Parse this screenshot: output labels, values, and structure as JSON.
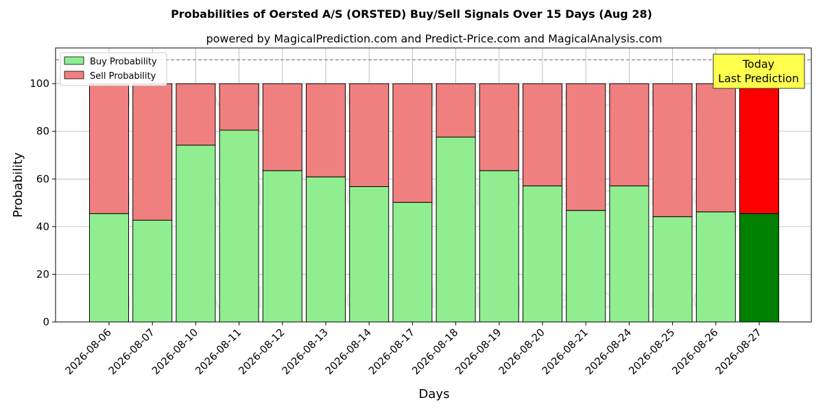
{
  "chart_data": {
    "type": "bar",
    "stacked": true,
    "title": "Probabilities of Oersted A/S (ORSTED) Buy/Sell Signals Over 15 Days (Aug 28)",
    "subtitle": "powered by MagicalPrediction.com and Predict-Price.com and MagicalAnalysis.com",
    "xlabel": "Days",
    "ylabel": "Probability",
    "ylim": [
      0,
      115
    ],
    "yticks": [
      0,
      20,
      40,
      60,
      80,
      100
    ],
    "grid": true,
    "reference_line": 110,
    "legend_position": "top-left",
    "categories": [
      "2026-08-06",
      "2026-08-07",
      "2026-08-10",
      "2026-08-11",
      "2026-08-12",
      "2026-08-13",
      "2026-08-14",
      "2026-08-17",
      "2026-08-18",
      "2026-08-19",
      "2026-08-20",
      "2026-08-21",
      "2026-08-24",
      "2026-08-25",
      "2026-08-26",
      "2026-08-27"
    ],
    "series": [
      {
        "name": "Buy Probability",
        "values": [
          45.5,
          42.7,
          74.2,
          80.5,
          63.5,
          60.9,
          56.8,
          50.2,
          77.6,
          63.5,
          57.1,
          46.8,
          57.1,
          44.2,
          46.2,
          45.5
        ],
        "color": "#90ee90",
        "highlight_color": "#008000"
      },
      {
        "name": "Sell Probability",
        "values": [
          54.5,
          57.3,
          25.8,
          19.5,
          36.5,
          39.1,
          43.2,
          49.8,
          22.4,
          36.5,
          42.9,
          53.2,
          42.9,
          55.8,
          53.8,
          54.5
        ],
        "color": "#f08080",
        "highlight_color": "#ff0000"
      }
    ],
    "highlight_index": 15,
    "annotation": {
      "lines": [
        "Today",
        "Last Prediction"
      ],
      "background": "#ffff4d"
    },
    "watermarks": [
      "MagicalAnalysis.com",
      "MagicalPrediction.com"
    ]
  }
}
